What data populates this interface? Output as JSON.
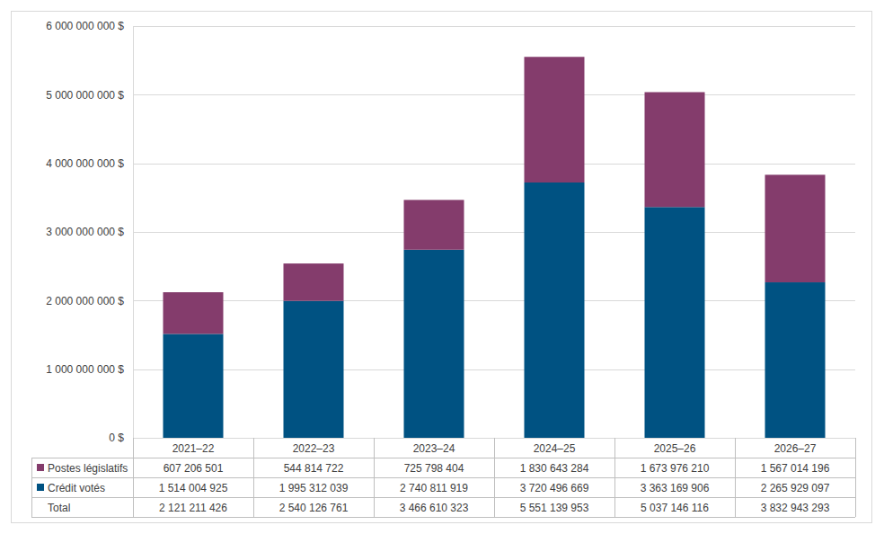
{
  "chart_data": {
    "type": "bar",
    "stacked": true,
    "grid": true,
    "categories": [
      "2021–22",
      "2022–23",
      "2023–24",
      "2024–25",
      "2025–26",
      "2026–27"
    ],
    "series": [
      {
        "name": "Postes législatifs",
        "color": "#843C6C",
        "values": [
          607206501,
          544814722,
          725798404,
          1830643284,
          1673976210,
          1567014196
        ],
        "value_labels": [
          "607 206 501",
          "544 814 722",
          "725 798 404",
          "1 830 643 284",
          "1 673 976 210",
          "1 567 014 196"
        ]
      },
      {
        "name": "Crédit votés",
        "color": "#005282",
        "values": [
          1514004925,
          1995312039,
          2740811919,
          3720496669,
          3363169906,
          2265929097
        ],
        "value_labels": [
          "1 514 004 925",
          "1 995 312 039",
          "2 740 811 919",
          "3 720 496 669",
          "3 363 169 906",
          "2 265 929 097"
        ]
      }
    ],
    "total": {
      "name": "Total",
      "values": [
        2121211426,
        2540126761,
        3466610323,
        5551139953,
        5037146116,
        3832943293
      ],
      "value_labels": [
        "2 121 211 426",
        "2 540 126 761",
        "3 466 610 323",
        "5 551 139 953",
        "5 037 146 116",
        "3 832 943 293"
      ]
    },
    "ylim": [
      0,
      6000000000
    ],
    "yticks": [
      {
        "value": 0,
        "label": "0 $"
      },
      {
        "value": 1000000000,
        "label": "1 000 000 000 $"
      },
      {
        "value": 2000000000,
        "label": "2 000 000 000 $"
      },
      {
        "value": 3000000000,
        "label": "3 000 000 000 $"
      },
      {
        "value": 4000000000,
        "label": "4 000 000 000 $"
      },
      {
        "value": 5000000000,
        "label": "5 000 000 000 $"
      },
      {
        "value": 6000000000,
        "label": "6 000 000 000 $"
      }
    ]
  }
}
